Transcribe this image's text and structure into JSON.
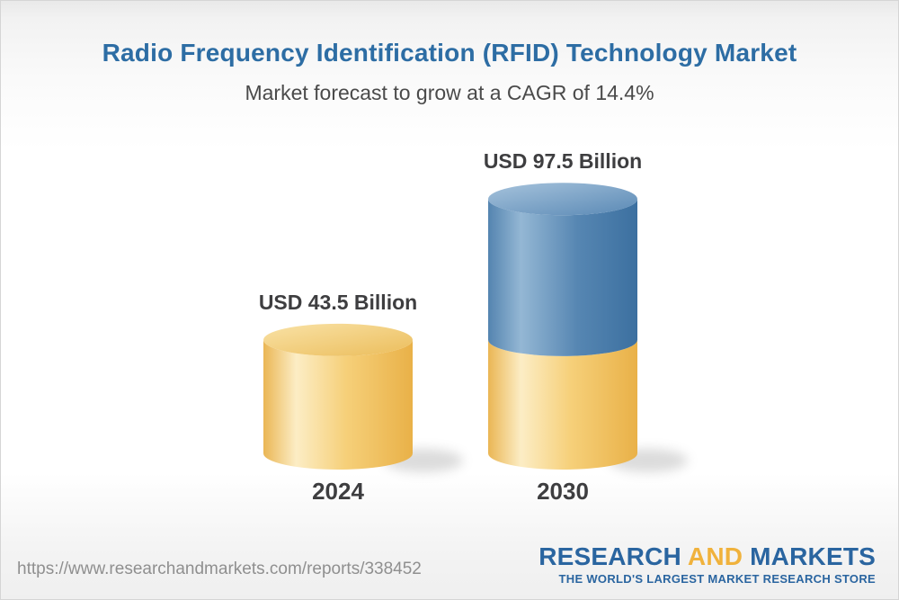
{
  "header": {
    "title": "Radio Frequency Identification (RFID) Technology Market",
    "subtitle": "Market forecast to grow at a CAGR of 14.4%"
  },
  "chart_data": {
    "type": "bar",
    "variant": "3d-cylinder",
    "unit": "USD Billion",
    "title": "Radio Frequency Identification (RFID) Technology Market",
    "subtitle": "Market forecast to grow at a CAGR of 14.4%",
    "cagr_percent": 14.4,
    "categories": [
      "2024",
      "2030"
    ],
    "values": [
      43.5,
      97.5
    ],
    "bars": [
      {
        "category": "2024",
        "value": 43.5,
        "label": "USD 43.5 Billion",
        "segments": [
          {
            "value": 43.5,
            "palette": "gold"
          }
        ]
      },
      {
        "category": "2030",
        "value": 97.5,
        "label": "USD 97.5 Billion",
        "segments": [
          {
            "value": 43.5,
            "palette": "gold"
          },
          {
            "value": 54.0,
            "palette": "blue"
          }
        ]
      }
    ],
    "palette": {
      "gold": "#f0c268",
      "blue": "#4e80ac"
    },
    "legend": false,
    "axes_visible": false
  },
  "colors": {
    "title_blue": "#2d6da4",
    "text_dark": "#3e3e40",
    "url_gray": "#8f8f8f",
    "logo_blue": "#2a65a0",
    "logo_gold": "#f0b23c"
  },
  "footer": {
    "url": "https://www.researchandmarkets.com/reports/338452",
    "logo": {
      "research": "RESEARCH",
      "and": "AND",
      "markets": "MARKETS",
      "tagline": "THE WORLD'S LARGEST MARKET RESEARCH STORE"
    }
  }
}
